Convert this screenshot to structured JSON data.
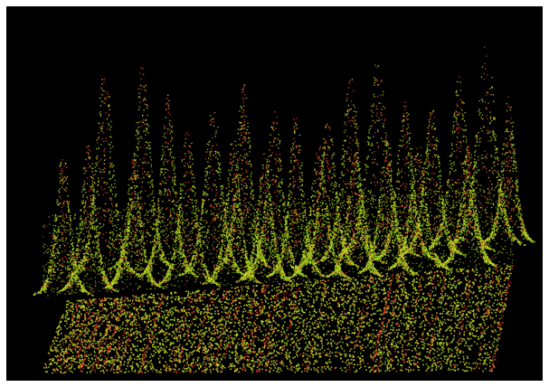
{
  "scene": {
    "kind": "3d point cloud render",
    "background_color": "#000000",
    "frame_color": "#ffffff",
    "palette": {
      "green": "#8fd21e",
      "yellow_green": "#c4dc28",
      "yellow": "#e0c830",
      "orange": "#e0782a",
      "red": "#d83a2a"
    }
  }
}
